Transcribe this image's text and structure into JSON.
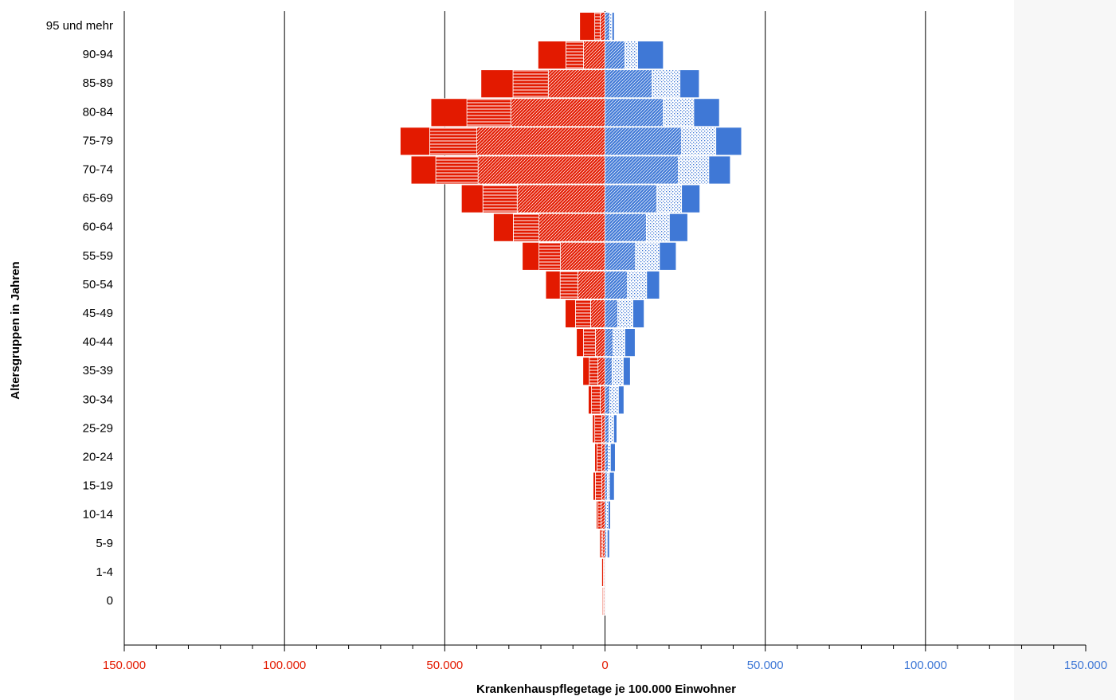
{
  "chart_data": {
    "type": "stacked-pyramid",
    "x_label": "Krankenhauspflegetage je 100.000 Einwohner",
    "y_label": "Altersgruppen in Jahren",
    "categories": [
      "95 und mehr",
      "90-94",
      "85-89",
      "80-84",
      "75-79",
      "70-74",
      "65-69",
      "60-64",
      "55-59",
      "50-54",
      "45-49",
      "40-44",
      "35-39",
      "30-34",
      "25-29",
      "20-24",
      "15-19",
      "10-14",
      "5-9",
      "1-4",
      "0"
    ],
    "series": [
      {
        "color": "#e31a00",
        "pattern": "diagonal",
        "values": [
          -1500,
          -6700,
          -17700,
          -29400,
          -40000,
          -39600,
          -27400,
          -20600,
          -13900,
          -8500,
          -4500,
          -3000,
          -2200,
          -1500,
          -1000,
          -1000,
          -1000,
          -1200,
          -700,
          -300,
          -200
        ]
      },
      {
        "color": "#e31a00",
        "pattern": "hlines",
        "values": [
          -1700,
          -5500,
          -11000,
          -13700,
          -14700,
          -13200,
          -10700,
          -8000,
          -6700,
          -5500,
          -4700,
          -3700,
          -2700,
          -2700,
          -2200,
          -1500,
          -2000,
          -1000,
          -500,
          -200,
          -300
        ]
      },
      {
        "color": "#e31a00",
        "pattern": "solid",
        "values": [
          -4700,
          -8700,
          -10000,
          -11200,
          -9200,
          -7700,
          -6700,
          -6200,
          -5200,
          -4500,
          -3200,
          -2200,
          -2000,
          -1000,
          -700,
          -700,
          -700,
          -500,
          -500,
          -500,
          -300
        ]
      },
      {
        "color": "#3f78d6",
        "pattern": "diagonal",
        "values": [
          1500,
          6200,
          14700,
          18200,
          23900,
          22900,
          16200,
          12900,
          9500,
          7000,
          4000,
          2500,
          2200,
          1500,
          1200,
          1000,
          700,
          500,
          500,
          200,
          200
        ]
      },
      {
        "color": "#3f78d6",
        "pattern": "dots",
        "values": [
          700,
          4000,
          8700,
          9500,
          10700,
          9500,
          7700,
          7200,
          7500,
          6000,
          4700,
          3700,
          3500,
          2700,
          1500,
          700,
          700,
          500,
          200,
          200,
          200
        ]
      },
      {
        "color": "#3f78d6",
        "pattern": "solid",
        "values": [
          700,
          8000,
          6000,
          8000,
          8000,
          6700,
          5700,
          5700,
          5200,
          4000,
          3500,
          3200,
          2200,
          1700,
          1000,
          1500,
          1500,
          700,
          700,
          100,
          100
        ]
      }
    ],
    "xlim": [
      -150000,
      150000
    ],
    "xticks": [
      {
        "value": -150000,
        "label": "150.000"
      },
      {
        "value": -100000,
        "label": "100.000"
      },
      {
        "value": -50000,
        "label": "50.000"
      },
      0,
      {
        "value": 50000,
        "label": "50.000"
      },
      {
        "value": 100000,
        "label": "100.000"
      },
      {
        "value": 150000,
        "label": "150.000"
      }
    ],
    "xminorticks": [
      -140000,
      -130000,
      -120000,
      -110000,
      -90000,
      -80000,
      -70000,
      -60000,
      -40000,
      -30000,
      -20000,
      -10000,
      10000,
      20000,
      30000,
      40000,
      60000,
      70000,
      80000,
      90000,
      110000,
      120000,
      130000,
      140000
    ],
    "grid": true
  }
}
